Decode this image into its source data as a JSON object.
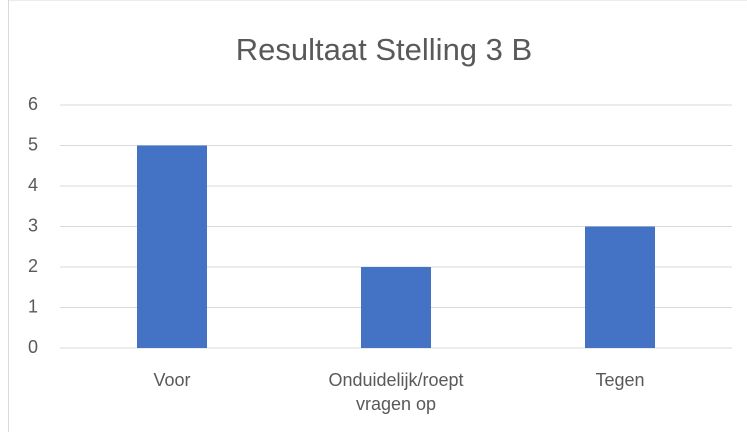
{
  "chart_data": {
    "type": "bar",
    "title": "Resultaat Stelling 3 B",
    "categories": [
      "Voor",
      "Onduidelijk/roept vragen op",
      "Tegen"
    ],
    "values": [
      5,
      2,
      3
    ],
    "color": "#4472c4",
    "ylim": [
      0,
      6
    ],
    "yticks": [
      0,
      1,
      2,
      3,
      4,
      5,
      6
    ],
    "grid": true
  }
}
